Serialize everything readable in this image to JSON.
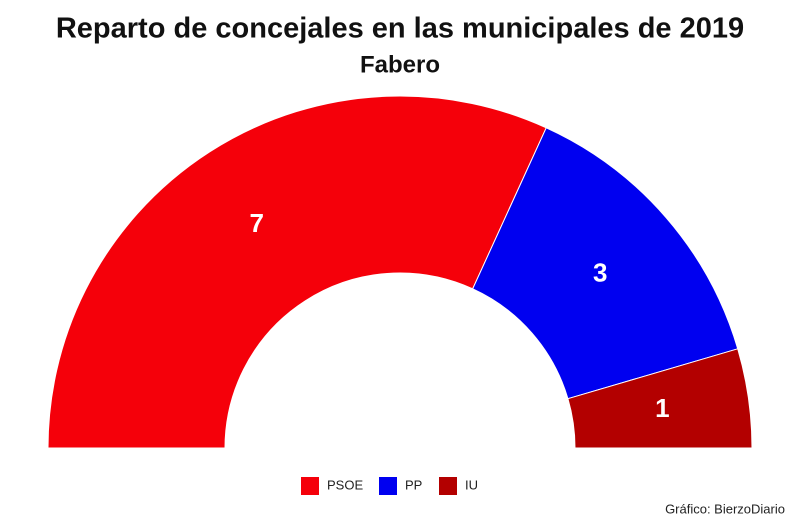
{
  "chart_data": {
    "type": "semidonut",
    "title": "Reparto de concejales en las municipales de 2019",
    "subtitle": "Fabero",
    "categories": [
      "PSOE",
      "PP",
      "IU"
    ],
    "values": [
      7,
      3,
      1
    ],
    "colors": [
      "#f5000a",
      "#0000f0",
      "#b30000"
    ],
    "legend": "bottom",
    "source": "Gráfico: BierzoDiario"
  }
}
